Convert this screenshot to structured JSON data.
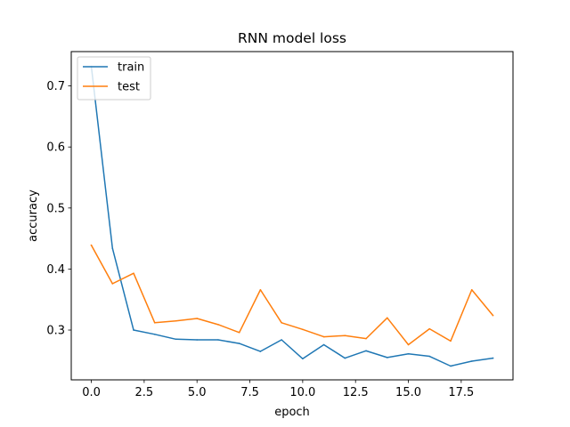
{
  "chart_data": {
    "type": "line",
    "title": "RNN model loss",
    "xlabel": "epoch",
    "ylabel": "accuracy",
    "xlim": [
      -0.95,
      19.95
    ],
    "ylim": [
      0.2184,
      0.7563
    ],
    "xticks": [
      0,
      2.5,
      5,
      7.5,
      10,
      12.5,
      15,
      17.5
    ],
    "xtick_labels": [
      "0.0",
      "2.5",
      "5.0",
      "7.5",
      "10.0",
      "12.5",
      "15.0",
      "17.5"
    ],
    "yticks": [
      0.3,
      0.4,
      0.5,
      0.6,
      0.7
    ],
    "ytick_labels": [
      "0.3",
      "0.4",
      "0.5",
      "0.6",
      "0.7"
    ],
    "grid": false,
    "legend_position": "upper-left",
    "x": [
      0,
      1,
      2,
      3,
      4,
      5,
      6,
      7,
      8,
      9,
      10,
      11,
      12,
      13,
      14,
      15,
      16,
      17,
      18,
      19
    ],
    "series": [
      {
        "name": "train",
        "color": "#1f77b4",
        "values": [
          0.732,
          0.434,
          0.3,
          0.293,
          0.285,
          0.284,
          0.284,
          0.278,
          0.265,
          0.284,
          0.253,
          0.276,
          0.254,
          0.266,
          0.255,
          0.261,
          0.257,
          0.241,
          0.249,
          0.254
        ]
      },
      {
        "name": "test",
        "color": "#ff7f0e",
        "values": [
          0.439,
          0.376,
          0.393,
          0.312,
          0.315,
          0.319,
          0.309,
          0.296,
          0.366,
          0.312,
          0.301,
          0.289,
          0.291,
          0.286,
          0.32,
          0.276,
          0.302,
          0.282,
          0.366,
          0.324
        ]
      }
    ]
  }
}
